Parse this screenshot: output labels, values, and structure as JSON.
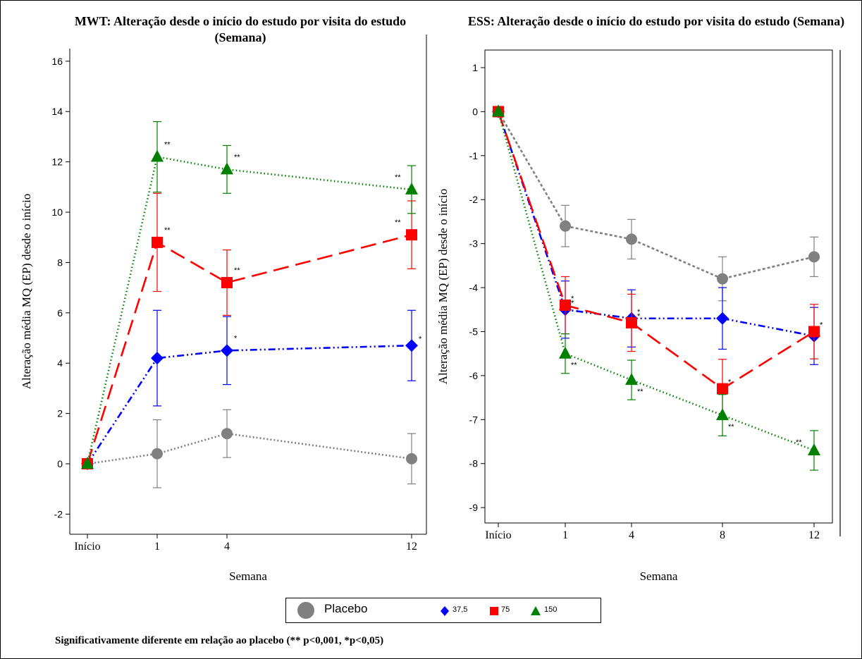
{
  "chart_data": [
    {
      "type": "line",
      "title": "MWT: Alteração desde o início do estudo por visita do estudo (Semana)",
      "xlabel": "Semana",
      "ylabel": "Alteração média MQ (EP) desde o início",
      "categories": [
        "Início",
        "1",
        "4",
        "12"
      ],
      "x": [
        0,
        1,
        4,
        12
      ],
      "ylim": [
        -2.8,
        16.5
      ],
      "yticks": [
        -2,
        0,
        2,
        4,
        6,
        8,
        10,
        12,
        14,
        16
      ],
      "series": [
        {
          "name": "Placebo",
          "color": "#808080",
          "marker": "circle",
          "values": [
            0,
            0.4,
            1.2,
            0.2
          ],
          "err": [
            0,
            1.35,
            0.95,
            1.0
          ],
          "sig": [
            "",
            "",
            "",
            ""
          ]
        },
        {
          "name": "37,5",
          "color": "#0000ff",
          "marker": "diamond",
          "values": [
            0,
            4.2,
            4.5,
            4.7
          ],
          "err": [
            0,
            1.9,
            1.35,
            1.4
          ],
          "sig": [
            "",
            "",
            "*",
            "*"
          ]
        },
        {
          "name": "75",
          "color": "#ff0000",
          "marker": "square",
          "values": [
            0,
            8.8,
            7.2,
            9.1
          ],
          "err": [
            0,
            1.95,
            1.3,
            1.35
          ],
          "sig": [
            "",
            "**",
            "**",
            "**"
          ]
        },
        {
          "name": "150",
          "color": "#008000",
          "marker": "triangle",
          "values": [
            0,
            12.2,
            11.7,
            10.9
          ],
          "err": [
            0,
            1.4,
            0.95,
            0.95
          ],
          "sig": [
            "",
            "**",
            "**",
            "**"
          ]
        }
      ]
    },
    {
      "type": "line",
      "title": "ESS: Alteração desde o início do estudo por visita do estudo (Semana)",
      "xlabel": "Semana",
      "ylabel": "Alteração média MQ (EP) desde o início",
      "categories": [
        "Início",
        "1",
        "4",
        "8",
        "12"
      ],
      "x": [
        0,
        1,
        4,
        8,
        12
      ],
      "ylim": [
        -9.35,
        1.4
      ],
      "yticks": [
        1,
        0,
        -1,
        -2,
        -3,
        -4,
        -5,
        -6,
        -7,
        -8,
        -9
      ],
      "series": [
        {
          "name": "Placebo",
          "color": "#808080",
          "marker": "circle",
          "values": [
            0,
            -2.6,
            -2.9,
            -3.8,
            -3.3
          ],
          "err": [
            0,
            0.47,
            0.45,
            0.5,
            0.45
          ],
          "sig": [
            "",
            "",
            "",
            "",
            ""
          ]
        },
        {
          "name": "37,5",
          "color": "#0000ff",
          "marker": "diamond",
          "values": [
            0,
            -4.5,
            -4.7,
            -4.7,
            -5.1
          ],
          "err": [
            0,
            0.65,
            0.65,
            0.7,
            0.65
          ],
          "sig": [
            "",
            "*",
            "*",
            "",
            ""
          ]
        },
        {
          "name": "75",
          "color": "#ff0000",
          "marker": "square",
          "values": [
            0,
            -4.4,
            -4.8,
            -6.3,
            -5.0
          ],
          "err": [
            0,
            0.65,
            0.65,
            0.67,
            0.62
          ],
          "sig": [
            "",
            "*",
            "*",
            "*",
            "*"
          ]
        },
        {
          "name": "150",
          "color": "#008000",
          "marker": "triangle",
          "values": [
            0,
            -5.5,
            -6.1,
            -6.9,
            -7.7
          ],
          "err": [
            0,
            0.45,
            0.45,
            0.47,
            0.45
          ],
          "sig": [
            "",
            "**",
            "**",
            "**",
            "**"
          ]
        }
      ]
    }
  ],
  "legend": {
    "placebo": "Placebo",
    "dose1": "37,5",
    "dose2": "75",
    "dose3": "150"
  },
  "footnote": "Significativamente diferente em relação ao placebo (** p<0,001, *p<0,05)"
}
